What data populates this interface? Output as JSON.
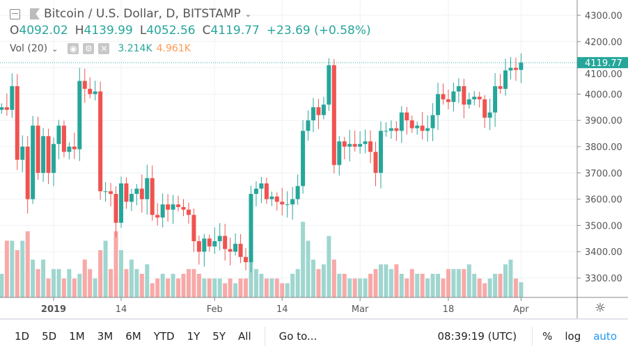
{
  "header": {
    "title": "Bitcoin / U.S. Dollar, D, BITSTAMP",
    "open_label": "O",
    "open": "4092.02",
    "high_label": "H",
    "high": "4139.99",
    "low_label": "L",
    "low": "4052.56",
    "close_label": "C",
    "close": "4119.77",
    "change": "+23.69 (+0.58%)"
  },
  "volume_legend": {
    "label": "Vol (20)",
    "value": "3.214K",
    "ma_value": "4.961K"
  },
  "price_axis": {
    "ticks": [
      "4300.00",
      "4200.00",
      "4100.00",
      "4000.00",
      "3900.00",
      "3800.00",
      "3700.00",
      "3600.00",
      "3500.00",
      "3400.00",
      "3300.00"
    ],
    "last_price_label": "4119.77"
  },
  "time_axis": {
    "ticks": [
      {
        "label": "2019",
        "day": 0,
        "bold": true
      },
      {
        "label": "14",
        "day": 13
      },
      {
        "label": "Feb",
        "day": 31
      },
      {
        "label": "14",
        "day": 44
      },
      {
        "label": "Mar",
        "day": 59
      },
      {
        "label": "18",
        "day": 76
      },
      {
        "label": "Apr",
        "day": 90
      }
    ]
  },
  "toolbar": {
    "ranges": [
      "1D",
      "5D",
      "1M",
      "3M",
      "6M",
      "YTD",
      "1Y",
      "5Y",
      "All"
    ],
    "goto": "Go to...",
    "clock": "08:39:19 (UTC)",
    "percent": "%",
    "log": "log",
    "auto": "auto"
  },
  "colors": {
    "up": "#26a69a",
    "down": "#ef5350",
    "vol_up": "#9fd6cf",
    "vol_down": "#f7a9a8",
    "accent": "#2196f3"
  },
  "chart_data": {
    "type": "candlestick",
    "ylim": [
      3250,
      4330
    ],
    "x_first_day": -10,
    "close": [
      3950,
      3940,
      4030,
      3750,
      3800,
      3600,
      3880,
      3700,
      3840,
      3700,
      3810,
      3880,
      3780,
      3800,
      3790,
      4050,
      4020,
      4000,
      4010,
      3630,
      3630,
      3620,
      3510,
      3660,
      3590,
      3620,
      3640,
      3600,
      3680,
      3540,
      3530,
      3580,
      3560,
      3580,
      3570,
      3560,
      3540,
      3440,
      3400,
      3450,
      3420,
      3440,
      3460,
      3410,
      3400,
      3430,
      3380,
      3360,
      3620,
      3640,
      3660,
      3600,
      3610,
      3590,
      3580,
      3580,
      3600,
      3650,
      3860,
      3900,
      3950,
      3920,
      3960,
      4110,
      3730,
      3820,
      3800,
      3810,
      3800,
      3810,
      3820,
      3780,
      3700,
      3860,
      3860,
      3870,
      3860,
      3930,
      3900,
      3870,
      3880,
      3860,
      3870,
      3920,
      4000,
      3980,
      3970,
      4010,
      4030,
      3960,
      3980,
      3990,
      3980,
      3910,
      3930,
      4030,
      4020,
      4090,
      4100,
      4092,
      4119.77
    ],
    "volume_k": [
      5,
      12,
      12,
      10,
      12,
      14,
      8,
      6,
      8,
      4,
      6,
      6,
      4,
      6,
      4,
      5,
      8,
      6,
      4,
      10,
      12,
      6,
      14,
      10,
      6,
      8,
      6,
      5,
      7,
      3,
      4,
      5,
      4,
      5,
      4,
      5,
      6,
      6,
      5,
      4,
      4,
      4,
      4,
      3,
      4,
      3,
      4,
      4,
      8,
      6,
      5,
      4,
      4,
      4,
      3,
      3,
      5,
      6,
      16,
      12,
      8,
      6,
      7,
      13,
      8,
      5,
      5,
      4,
      4,
      4,
      4,
      5,
      6,
      7,
      7,
      6,
      7,
      5,
      4,
      6,
      5,
      5,
      4,
      5,
      5,
      4,
      6,
      6,
      6,
      6,
      7,
      5,
      4,
      3,
      4,
      5,
      5,
      7,
      8,
      4,
      3.214
    ]
  }
}
